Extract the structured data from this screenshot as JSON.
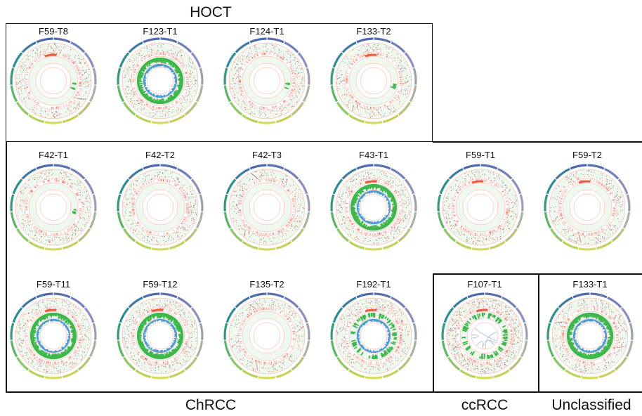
{
  "groups": {
    "hoct": "HOCT",
    "chrcc": "ChRCC",
    "ccrcc": "ccRCC",
    "unclassified": "Unclassified"
  },
  "panels": [
    {
      "id": "F59-T8",
      "label": "F59-T8",
      "group": "HOCT",
      "green_ring": "sparse",
      "blue_ring": false,
      "red_arc": true
    },
    {
      "id": "F123-T1",
      "label": "F123-T1",
      "group": "HOCT",
      "green_ring": "full",
      "blue_ring": true,
      "red_arc": false
    },
    {
      "id": "F124-T1",
      "label": "F124-T1",
      "group": "HOCT",
      "green_ring": "sparse",
      "blue_ring": false,
      "red_arc": false
    },
    {
      "id": "F133-T2",
      "label": "F133-T2",
      "group": "HOCT",
      "green_ring": "sparse",
      "blue_ring": false,
      "red_arc": true
    },
    {
      "id": "F42-T1",
      "label": "F42-T1",
      "group": "ChRCC",
      "green_ring": "sparse",
      "blue_ring": false,
      "red_arc": false
    },
    {
      "id": "F42-T2",
      "label": "F42-T2",
      "group": "ChRCC",
      "green_ring": "none",
      "blue_ring": false,
      "red_arc": false
    },
    {
      "id": "F42-T3",
      "label": "F42-T3",
      "group": "ChRCC",
      "green_ring": "none",
      "blue_ring": false,
      "red_arc": false
    },
    {
      "id": "F43-T1",
      "label": "F43-T1",
      "group": "ChRCC",
      "green_ring": "full",
      "blue_ring": true,
      "red_arc": true
    },
    {
      "id": "F59-T1",
      "label": "F59-T1",
      "group": "ChRCC",
      "green_ring": "none",
      "blue_ring": false,
      "red_arc": true
    },
    {
      "id": "F59-T2",
      "label": "F59-T2",
      "group": "ChRCC",
      "green_ring": "none",
      "blue_ring": false,
      "red_arc": true
    },
    {
      "id": "F59-T11",
      "label": "F59-T11",
      "group": "ChRCC",
      "green_ring": "full",
      "blue_ring": true,
      "red_arc": true
    },
    {
      "id": "F59-T12",
      "label": "F59-T12",
      "group": "ChRCC",
      "green_ring": "full",
      "blue_ring": true,
      "red_arc": true
    },
    {
      "id": "F135-T2",
      "label": "F135-T2",
      "group": "ChRCC",
      "green_ring": "none",
      "blue_ring": false,
      "red_arc": false
    },
    {
      "id": "F192-T1",
      "label": "F192-T1",
      "group": "ChRCC",
      "green_ring": "partial",
      "blue_ring": true,
      "red_arc": true
    },
    {
      "id": "F107-T1",
      "label": "F107-T1",
      "group": "ccRCC",
      "green_ring": "partial",
      "blue_ring": false,
      "red_arc": true
    },
    {
      "id": "F133-T1",
      "label": "F133-T1",
      "group": "Unclassified",
      "green_ring": "full",
      "blue_ring": true,
      "red_arc": false
    }
  ],
  "colors": {
    "ideogram": [
      "#5a6fb0",
      "#6e7fc0",
      "#8a8fc8",
      "#9aa0b0",
      "#a9b3a0",
      "#b8c07a",
      "#c9d05a",
      "#d8dc55",
      "#b7d35a",
      "#8cc863",
      "#59b866",
      "#2f9c7a",
      "#2a8f95",
      "#3a79a8",
      "#4b6aae"
    ],
    "scatter": "#8a2a4a",
    "cnv_red": "#f05a3c",
    "cnv_green": "#3cb84a",
    "cnv_blue": "#4a9ad8",
    "ring_line": "#f4a090",
    "ring_fill": "#eef8ee",
    "frame": "#111111"
  }
}
